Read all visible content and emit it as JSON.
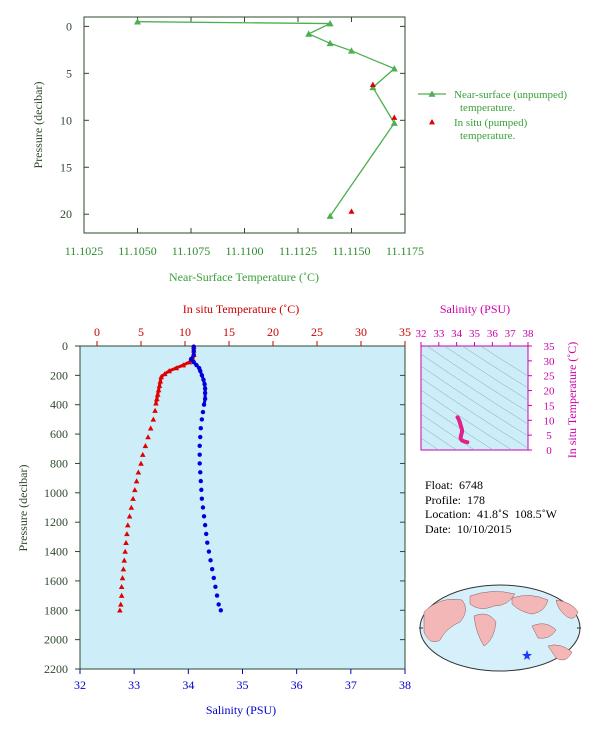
{
  "colors": {
    "near_surface": "#4caf50",
    "in_situ": "#e00000",
    "salinity": "#0000dd",
    "ts_magenta": "#cc00aa",
    "plot_bg": "#cdeef8",
    "axis_green": "#2e4a2e"
  },
  "chart_data": [
    {
      "type": "line",
      "xlabel": "Near-Surface Temperature (˚C)",
      "ylabel": "Pressure (decibar)",
      "xlim": [
        11.1025,
        11.1175
      ],
      "ylim": [
        22,
        -1
      ],
      "x_ticks": [
        "11.1025",
        "11.1050",
        "11.1075",
        "11.1100",
        "11.1125",
        "11.1150",
        "11.1175"
      ],
      "y_ticks": [
        "0",
        "5",
        "10",
        "15",
        "20"
      ],
      "legend_position": "right",
      "series": [
        {
          "name": "Near-surface (unpumped) temperature.",
          "marker": "triangle",
          "points": [
            [
              11.105,
              -0.5
            ],
            [
              11.114,
              -0.3
            ],
            [
              11.113,
              0.8
            ],
            [
              11.114,
              1.8
            ],
            [
              11.115,
              2.6
            ],
            [
              11.117,
              4.5
            ],
            [
              11.116,
              6.5
            ],
            [
              11.117,
              10.3
            ],
            [
              11.114,
              20.2
            ]
          ]
        },
        {
          "name": "In situ (pumped) temperature.",
          "marker": "triangle",
          "points": [
            [
              11.116,
              6.2
            ],
            [
              11.117,
              9.7
            ],
            [
              11.115,
              19.7
            ]
          ]
        }
      ]
    },
    {
      "type": "scatter",
      "x_top_label": "In situ Temperature (˚C)",
      "x_bottom_label": "Salinity (PSU)",
      "ylabel": "Pressure (decibar)",
      "temp_xlim": [
        0,
        35
      ],
      "sal_xlim": [
        32,
        38
      ],
      "ylim": [
        2200,
        0
      ],
      "temp_ticks": [
        "0",
        "5",
        "10",
        "15",
        "20",
        "25",
        "30",
        "35"
      ],
      "sal_ticks": [
        "32",
        "33",
        "34",
        "35",
        "36",
        "37",
        "38"
      ],
      "y_ticks": [
        "0",
        "200",
        "400",
        "600",
        "800",
        "1000",
        "1200",
        "1400",
        "1600",
        "1800",
        "2000",
        "2200"
      ],
      "temperature_profile": [
        [
          11.0,
          5
        ],
        [
          11.0,
          30
        ],
        [
          11.0,
          60
        ],
        [
          10.9,
          90
        ],
        [
          10.5,
          110
        ],
        [
          9.8,
          130
        ],
        [
          9.0,
          150
        ],
        [
          8.2,
          170
        ],
        [
          7.7,
          190
        ],
        [
          7.3,
          210
        ],
        [
          7.2,
          240
        ],
        [
          7.1,
          270
        ],
        [
          7.0,
          300
        ],
        [
          6.9,
          330
        ],
        [
          6.8,
          360
        ],
        [
          6.7,
          390
        ],
        [
          6.6,
          440
        ],
        [
          6.4,
          500
        ],
        [
          6.1,
          560
        ],
        [
          5.8,
          620
        ],
        [
          5.5,
          680
        ],
        [
          5.2,
          740
        ],
        [
          5.0,
          800
        ],
        [
          4.7,
          860
        ],
        [
          4.5,
          920
        ],
        [
          4.3,
          980
        ],
        [
          4.1,
          1040
        ],
        [
          3.9,
          1100
        ],
        [
          3.7,
          1160
        ],
        [
          3.5,
          1220
        ],
        [
          3.4,
          1280
        ],
        [
          3.3,
          1340
        ],
        [
          3.2,
          1400
        ],
        [
          3.1,
          1460
        ],
        [
          3.0,
          1520
        ],
        [
          2.9,
          1580
        ],
        [
          2.8,
          1640
        ],
        [
          2.8,
          1700
        ],
        [
          2.7,
          1760
        ],
        [
          2.6,
          1800
        ]
      ],
      "salinity_profile": [
        [
          34.1,
          5
        ],
        [
          34.1,
          30
        ],
        [
          34.1,
          60
        ],
        [
          34.05,
          90
        ],
        [
          34.1,
          110
        ],
        [
          34.15,
          130
        ],
        [
          34.2,
          150
        ],
        [
          34.22,
          170
        ],
        [
          34.25,
          200
        ],
        [
          34.28,
          230
        ],
        [
          34.3,
          260
        ],
        [
          34.31,
          290
        ],
        [
          34.31,
          320
        ],
        [
          34.31,
          360
        ],
        [
          34.29,
          400
        ],
        [
          34.27,
          450
        ],
        [
          34.25,
          500
        ],
        [
          34.23,
          560
        ],
        [
          34.22,
          620
        ],
        [
          34.21,
          680
        ],
        [
          34.21,
          740
        ],
        [
          34.21,
          800
        ],
        [
          34.22,
          860
        ],
        [
          34.23,
          920
        ],
        [
          34.24,
          980
        ],
        [
          34.25,
          1040
        ],
        [
          34.27,
          1100
        ],
        [
          34.29,
          1160
        ],
        [
          34.31,
          1220
        ],
        [
          34.33,
          1280
        ],
        [
          34.35,
          1340
        ],
        [
          34.38,
          1400
        ],
        [
          34.41,
          1460
        ],
        [
          34.44,
          1520
        ],
        [
          34.47,
          1580
        ],
        [
          34.5,
          1640
        ],
        [
          34.53,
          1700
        ],
        [
          34.56,
          1760
        ],
        [
          34.6,
          1800
        ]
      ]
    },
    {
      "type": "scatter",
      "xlabel": "Salinity (PSU)",
      "ylabel": "In situ Temperature (˚C)",
      "xlim": [
        32,
        38
      ],
      "ylim": [
        0,
        35
      ],
      "x_ticks": [
        "32",
        "33",
        "34",
        "35",
        "36",
        "37",
        "38"
      ],
      "y_ticks": [
        "0",
        "5",
        "10",
        "15",
        "20",
        "25",
        "30",
        "35"
      ],
      "ts_points": [
        [
          34.05,
          11.0
        ],
        [
          34.1,
          10.5
        ],
        [
          34.15,
          9.8
        ],
        [
          34.2,
          8.8
        ],
        [
          34.25,
          7.8
        ],
        [
          34.28,
          7.2
        ],
        [
          34.3,
          6.8
        ],
        [
          34.3,
          6.2
        ],
        [
          34.28,
          5.6
        ],
        [
          34.25,
          5.0
        ],
        [
          34.23,
          4.5
        ],
        [
          34.22,
          4.0
        ],
        [
          34.25,
          3.6
        ],
        [
          34.3,
          3.2
        ],
        [
          34.38,
          3.0
        ],
        [
          34.45,
          2.8
        ],
        [
          34.55,
          2.7
        ],
        [
          34.6,
          2.6
        ]
      ]
    }
  ],
  "info": {
    "float": "Float:  6748",
    "profile": "Profile:  178",
    "location": "Location:  41.8˚S  108.5˚W",
    "date": "Date:  10/10/2015"
  },
  "labels": {
    "top_x": "Near-Surface Temperature (˚C)",
    "top_y": "Pressure (decibar)",
    "legend1": "Near-surface (unpumped) temperature.",
    "legend2": "In situ (pumped) temperature.",
    "main_top_x": "In situ Temperature (˚C)",
    "main_bottom_x": "Salinity (PSU)",
    "main_y": "Pressure (decibar)",
    "ts_top_x": "Salinity (PSU)",
    "ts_right_y": "In situ Temperature (˚C)"
  }
}
